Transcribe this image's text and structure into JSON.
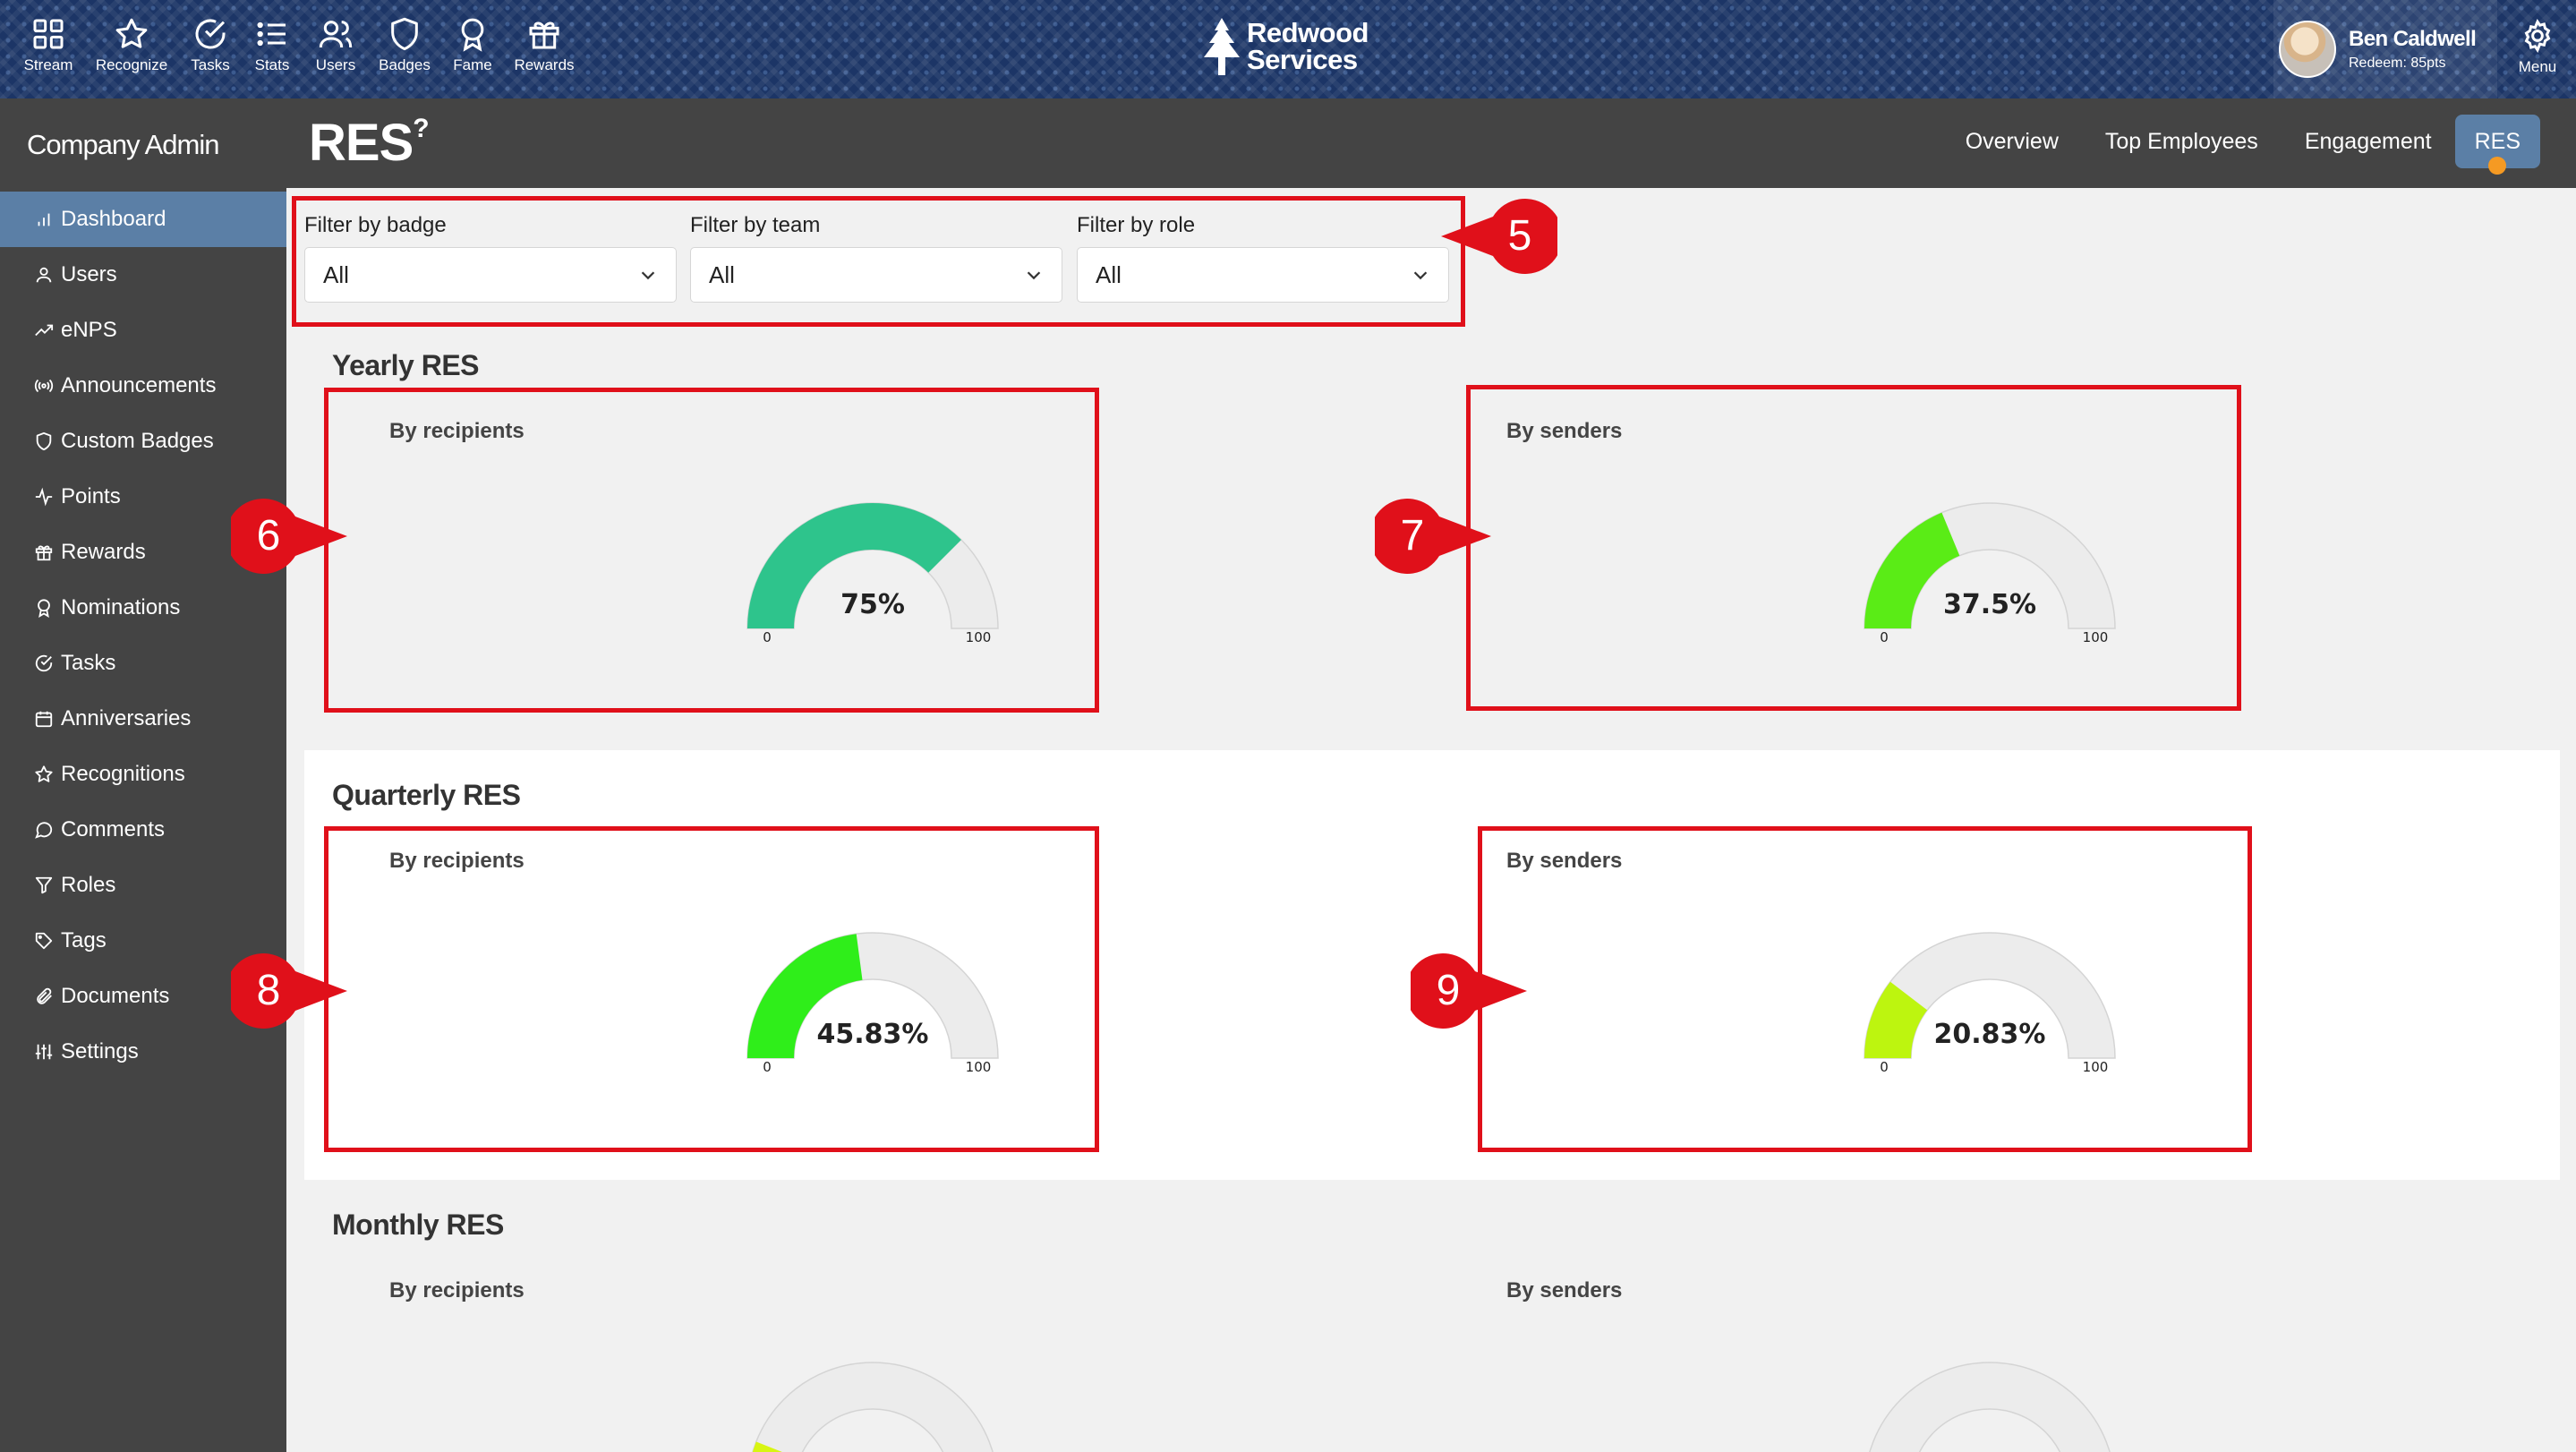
{
  "nav": [
    {
      "label": "Stream",
      "icon": "grid-icon"
    },
    {
      "label": "Recognize",
      "icon": "star-icon"
    },
    {
      "label": "Tasks",
      "icon": "check-circle-icon"
    },
    {
      "label": "Stats",
      "icon": "list-icon"
    },
    {
      "label": "Users",
      "icon": "users-icon"
    },
    {
      "label": "Badges",
      "icon": "shield-icon"
    },
    {
      "label": "Fame",
      "icon": "award-icon"
    },
    {
      "label": "Rewards",
      "icon": "gift-icon"
    }
  ],
  "brand": {
    "line1": "Redwood",
    "line2": "Services"
  },
  "user": {
    "name": "Ben Caldwell",
    "points": "Redeem: 85pts"
  },
  "menu_label": "Menu",
  "sidebar": {
    "company": "Company Admin",
    "items": [
      {
        "label": "Dashboard",
        "icon": "bar-chart-icon",
        "active": true
      },
      {
        "label": "Users",
        "icon": "user-icon"
      },
      {
        "label": "eNPS",
        "icon": "trend-icon"
      },
      {
        "label": "Announcements",
        "icon": "broadcast-icon"
      },
      {
        "label": "Custom Badges",
        "icon": "shield-icon"
      },
      {
        "label": "Points",
        "icon": "activity-icon"
      },
      {
        "label": "Rewards",
        "icon": "gift-icon"
      },
      {
        "label": "Nominations",
        "icon": "award-icon"
      },
      {
        "label": "Tasks",
        "icon": "check-circle-icon"
      },
      {
        "label": "Anniversaries",
        "icon": "calendar-icon"
      },
      {
        "label": "Recognitions",
        "icon": "star-icon"
      },
      {
        "label": "Comments",
        "icon": "comment-icon"
      },
      {
        "label": "Roles",
        "icon": "filter-icon"
      },
      {
        "label": "Tags",
        "icon": "tag-icon"
      },
      {
        "label": "Documents",
        "icon": "paperclip-icon"
      },
      {
        "label": "Settings",
        "icon": "sliders-icon"
      }
    ]
  },
  "page": {
    "title": "RES",
    "title_sup": "?"
  },
  "tabs": [
    {
      "label": "Overview"
    },
    {
      "label": "Top Employees"
    },
    {
      "label": "Engagement"
    },
    {
      "label": "RES",
      "active": true
    }
  ],
  "filters": [
    {
      "label": "Filter by badge",
      "value": "All"
    },
    {
      "label": "Filter by team",
      "value": "All"
    },
    {
      "label": "Filter by role",
      "value": "All"
    }
  ],
  "sections": {
    "yearly": {
      "title": "Yearly RES"
    },
    "quarterly": {
      "title": "Quarterly RES"
    },
    "monthly": {
      "title": "Monthly RES"
    }
  },
  "card_labels": {
    "recipients": "By recipients",
    "senders": "By senders"
  },
  "gauges": [
    {
      "id": "yearly-recipients",
      "value": 75,
      "text": "75%",
      "color": "#2ec48c",
      "min_label": "0",
      "max_label": "100"
    },
    {
      "id": "yearly-senders",
      "value": 37.5,
      "text": "37.5%",
      "color": "#5aec16",
      "min_label": "0",
      "max_label": "100"
    },
    {
      "id": "quarterly-recipients",
      "value": 45.83,
      "text": "45.83%",
      "color": "#2fee1a",
      "min_label": "0",
      "max_label": "100"
    },
    {
      "id": "quarterly-senders",
      "value": 20.83,
      "text": "20.83%",
      "color": "#bdf50f",
      "min_label": "0",
      "max_label": "100"
    },
    {
      "id": "monthly-recipients",
      "value": 12,
      "text": "",
      "color": "#d8f512",
      "min_label": "",
      "max_label": ""
    },
    {
      "id": "monthly-senders",
      "value": 0,
      "text": "",
      "color": "#d8f512",
      "min_label": "",
      "max_label": ""
    }
  ],
  "callouts": [
    "5",
    "6",
    "7",
    "8",
    "9"
  ],
  "colors": {
    "annotation_red": "#e0101a",
    "sidebar_bg": "#444444",
    "active_blue": "#5b7fa6",
    "topbar_navy": "#1c3566"
  }
}
